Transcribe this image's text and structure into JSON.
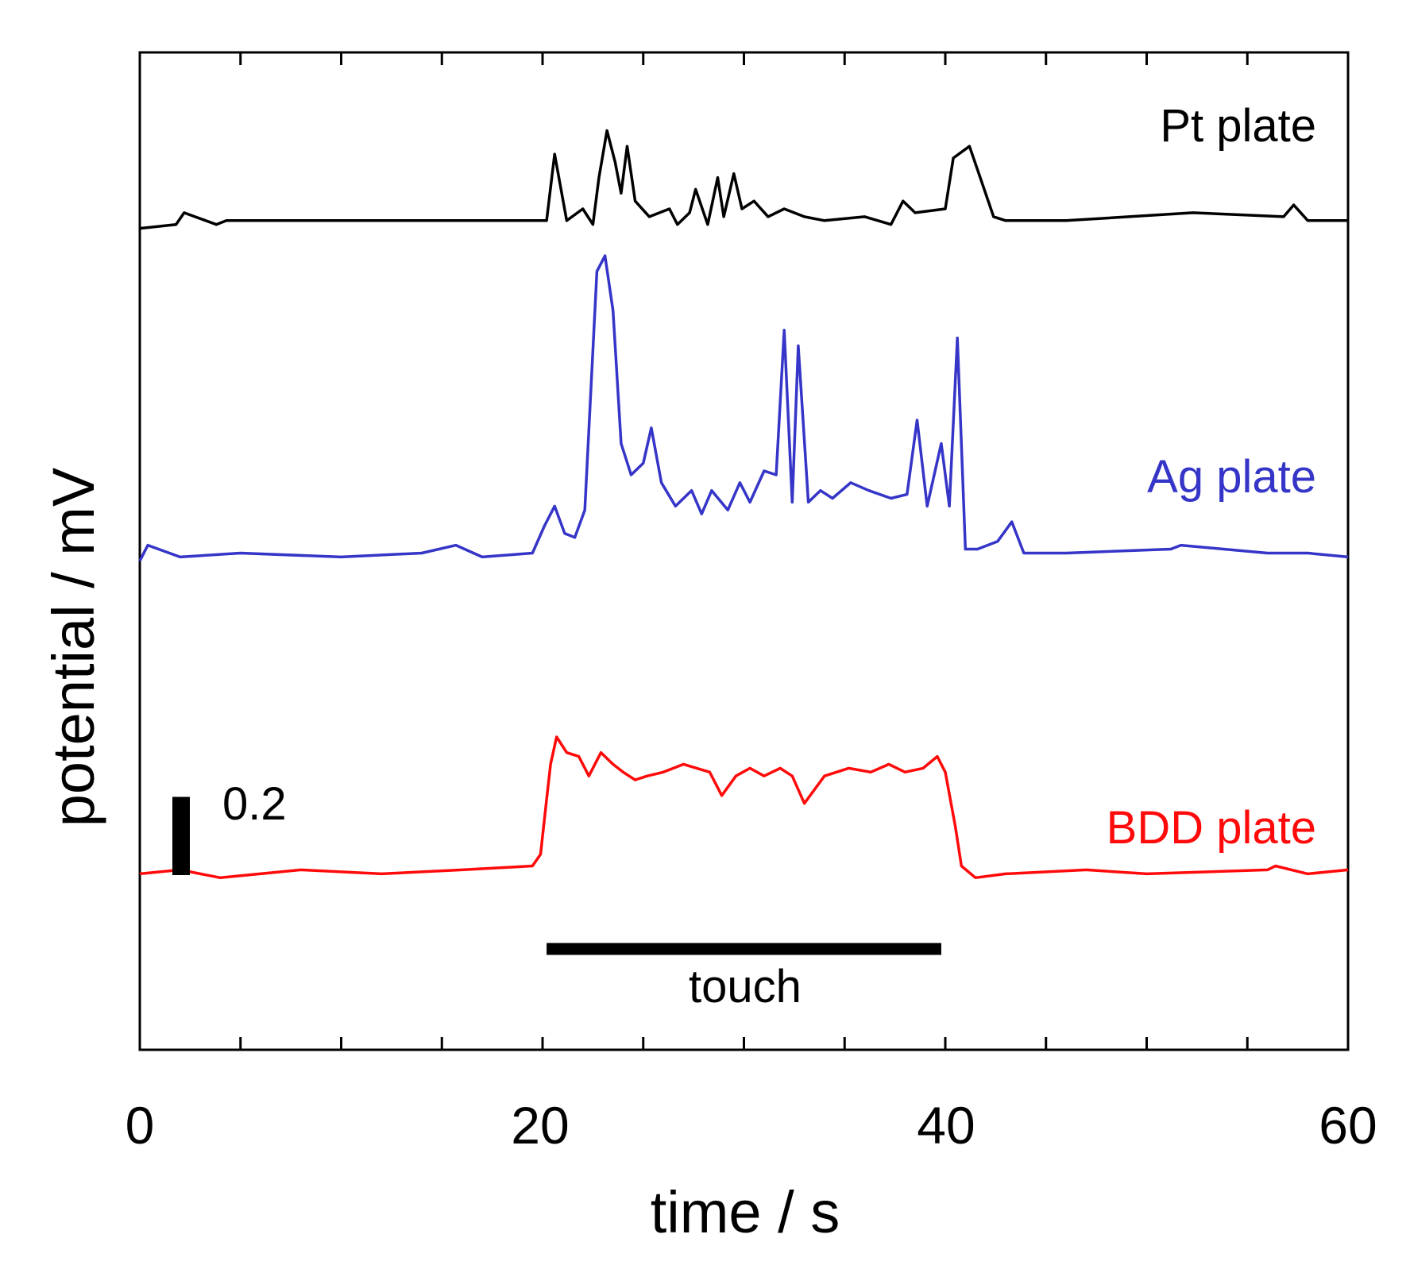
{
  "chart_data": {
    "type": "line",
    "xlabel": "time / s",
    "ylabel": "potential / mV",
    "xlim": [
      0,
      60
    ],
    "ylim": [
      -0.45,
      2.1
    ],
    "x_ticks": [
      "0",
      "20",
      "40",
      "60"
    ],
    "grid": false,
    "legend": "none",
    "series": [
      {
        "name": "Pt plate",
        "color": "#000000",
        "points": [
          [
            0,
            1.65
          ],
          [
            1.8,
            1.66
          ],
          [
            2.2,
            1.69
          ],
          [
            3.8,
            1.66
          ],
          [
            4.3,
            1.67
          ],
          [
            8.5,
            1.67
          ],
          [
            9.5,
            1.67
          ],
          [
            15,
            1.67
          ],
          [
            16.5,
            1.67
          ],
          [
            19.5,
            1.67
          ],
          [
            20.2,
            1.67
          ],
          [
            20.6,
            1.84
          ],
          [
            21.2,
            1.67
          ],
          [
            22,
            1.7
          ],
          [
            22.5,
            1.66
          ],
          [
            22.8,
            1.78
          ],
          [
            23.2,
            1.9
          ],
          [
            23.6,
            1.82
          ],
          [
            23.9,
            1.74
          ],
          [
            24.2,
            1.86
          ],
          [
            24.6,
            1.72
          ],
          [
            25.3,
            1.68
          ],
          [
            26.3,
            1.7
          ],
          [
            26.7,
            1.66
          ],
          [
            27.3,
            1.69
          ],
          [
            27.6,
            1.75
          ],
          [
            28.2,
            1.66
          ],
          [
            28.7,
            1.78
          ],
          [
            29.0,
            1.68
          ],
          [
            29.5,
            1.79
          ],
          [
            29.9,
            1.7
          ],
          [
            30.5,
            1.72
          ],
          [
            31.2,
            1.68
          ],
          [
            32,
            1.7
          ],
          [
            33,
            1.68
          ],
          [
            34,
            1.67
          ],
          [
            36,
            1.68
          ],
          [
            37.3,
            1.66
          ],
          [
            37.9,
            1.72
          ],
          [
            38.5,
            1.69
          ],
          [
            40,
            1.7
          ],
          [
            40.4,
            1.83
          ],
          [
            41.2,
            1.86
          ],
          [
            41.6,
            1.8
          ],
          [
            42.4,
            1.68
          ],
          [
            43,
            1.67
          ],
          [
            46,
            1.67
          ],
          [
            52.3,
            1.69
          ],
          [
            56.8,
            1.68
          ],
          [
            57.3,
            1.71
          ],
          [
            58,
            1.67
          ],
          [
            60,
            1.67
          ]
        ]
      },
      {
        "name": "Ag plate",
        "color": "#3535c8",
        "points": [
          [
            0,
            0.8
          ],
          [
            0.4,
            0.84
          ],
          [
            2,
            0.81
          ],
          [
            5,
            0.82
          ],
          [
            10,
            0.81
          ],
          [
            14,
            0.82
          ],
          [
            15.7,
            0.84
          ],
          [
            17,
            0.81
          ],
          [
            19.5,
            0.82
          ],
          [
            20.1,
            0.89
          ],
          [
            20.6,
            0.94
          ],
          [
            21.1,
            0.87
          ],
          [
            21.6,
            0.86
          ],
          [
            22.1,
            0.93
          ],
          [
            22.7,
            1.54
          ],
          [
            23.1,
            1.58
          ],
          [
            23.5,
            1.44
          ],
          [
            23.9,
            1.1
          ],
          [
            24.4,
            1.02
          ],
          [
            25.0,
            1.05
          ],
          [
            25.4,
            1.14
          ],
          [
            25.9,
            1.0
          ],
          [
            26.6,
            0.94
          ],
          [
            27.4,
            0.98
          ],
          [
            27.9,
            0.92
          ],
          [
            28.4,
            0.98
          ],
          [
            29.2,
            0.93
          ],
          [
            29.8,
            1.0
          ],
          [
            30.3,
            0.95
          ],
          [
            31.0,
            1.03
          ],
          [
            31.6,
            1.02
          ],
          [
            32.0,
            1.39
          ],
          [
            32.4,
            0.95
          ],
          [
            32.7,
            1.35
          ],
          [
            33.2,
            0.95
          ],
          [
            33.8,
            0.98
          ],
          [
            34.4,
            0.96
          ],
          [
            35.3,
            1.0
          ],
          [
            36.2,
            0.98
          ],
          [
            37.3,
            0.96
          ],
          [
            38.1,
            0.97
          ],
          [
            38.6,
            1.16
          ],
          [
            39.1,
            0.94
          ],
          [
            39.8,
            1.1
          ],
          [
            40.2,
            0.94
          ],
          [
            40.6,
            1.37
          ],
          [
            41.0,
            0.83
          ],
          [
            41.6,
            0.83
          ],
          [
            42.6,
            0.85
          ],
          [
            43.3,
            0.9
          ],
          [
            43.9,
            0.82
          ],
          [
            46,
            0.82
          ],
          [
            51.2,
            0.83
          ],
          [
            51.7,
            0.84
          ],
          [
            56,
            0.82
          ],
          [
            58,
            0.82
          ],
          [
            60,
            0.81
          ]
        ]
      },
      {
        "name": "BDD plate",
        "color": "#ff0a0a",
        "points": [
          [
            0,
            0.0
          ],
          [
            2,
            0.01
          ],
          [
            4,
            -0.01
          ],
          [
            8,
            0.01
          ],
          [
            12,
            0.0
          ],
          [
            16,
            0.01
          ],
          [
            19.5,
            0.02
          ],
          [
            19.9,
            0.05
          ],
          [
            20.2,
            0.19
          ],
          [
            20.4,
            0.28
          ],
          [
            20.7,
            0.35
          ],
          [
            21.2,
            0.31
          ],
          [
            21.8,
            0.3
          ],
          [
            22.3,
            0.25
          ],
          [
            22.9,
            0.31
          ],
          [
            23.5,
            0.28
          ],
          [
            24.0,
            0.26
          ],
          [
            24.6,
            0.24
          ],
          [
            25.2,
            0.25
          ],
          [
            26.0,
            0.26
          ],
          [
            27.0,
            0.28
          ],
          [
            28.3,
            0.26
          ],
          [
            28.9,
            0.2
          ],
          [
            29.6,
            0.25
          ],
          [
            30.3,
            0.27
          ],
          [
            31.0,
            0.25
          ],
          [
            31.8,
            0.27
          ],
          [
            32.4,
            0.25
          ],
          [
            33.0,
            0.18
          ],
          [
            34.0,
            0.25
          ],
          [
            35.2,
            0.27
          ],
          [
            36.3,
            0.26
          ],
          [
            37.2,
            0.28
          ],
          [
            38.0,
            0.26
          ],
          [
            38.9,
            0.27
          ],
          [
            39.6,
            0.3
          ],
          [
            40.0,
            0.26
          ],
          [
            40.5,
            0.12
          ],
          [
            40.8,
            0.02
          ],
          [
            41.5,
            -0.01
          ],
          [
            43,
            0.0
          ],
          [
            47,
            0.01
          ],
          [
            50,
            0.0
          ],
          [
            56,
            0.01
          ],
          [
            56.4,
            0.02
          ],
          [
            58,
            0.0
          ],
          [
            60,
            0.01
          ]
        ]
      }
    ],
    "annotations": {
      "scale_bar": {
        "value": 0.2,
        "label": "0.2"
      },
      "touch_bar": {
        "x_start": 20.2,
        "x_end": 39.8,
        "label": "touch"
      }
    }
  }
}
